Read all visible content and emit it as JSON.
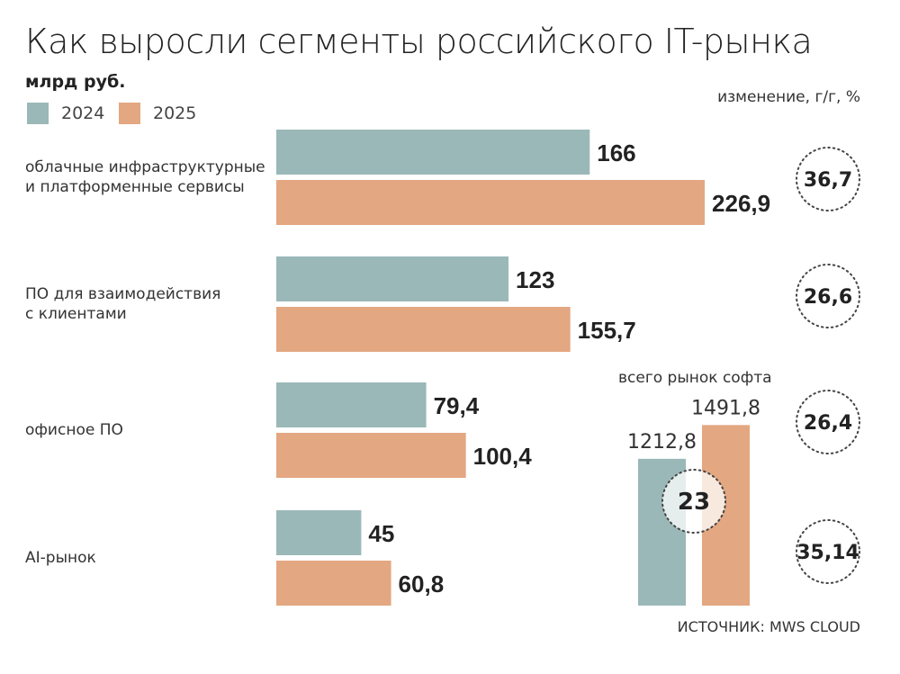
{
  "chart_data": {
    "type": "bar",
    "orientation": "horizontal",
    "title": "Как выросли сегменты российского IT-рынка",
    "subtitle": "млрд руб.",
    "categories": [
      "облачные инфраструктурные и платформенные сервисы",
      "ПО для взаимодействия с клиентами",
      "офисное ПО",
      "AI-рынок"
    ],
    "category_lines": [
      [
        "облачные инфраструктурные",
        "и платформенные сервисы"
      ],
      [
        "ПО для взаимодействия",
        "с клиентами"
      ],
      [
        "офисное ПО"
      ],
      [
        "AI-рынок"
      ]
    ],
    "series": [
      {
        "name": "2024",
        "color": "#9bb8b8",
        "values": [
          166,
          123,
          79.4,
          45
        ],
        "labels": [
          "166",
          "123",
          "79,4",
          "45"
        ]
      },
      {
        "name": "2025",
        "color": "#e3a781",
        "values": [
          226.9,
          155.7,
          100.4,
          60.8
        ],
        "labels": [
          "226,9",
          "155,7",
          "100,4",
          "60,8"
        ]
      }
    ],
    "change_label": "изменение, г/г, %",
    "changes": [
      "36,7",
      "26,6",
      "26,4",
      "35,14"
    ],
    "total": {
      "label": "всего рынок софта",
      "values": [
        1212.8,
        1491.8
      ],
      "labels": [
        "1212,8",
        "1491,8"
      ],
      "change": "23"
    },
    "legend": "top-left",
    "grid": false
  },
  "source": "ИСТОЧНИК: MWS CLOUD"
}
